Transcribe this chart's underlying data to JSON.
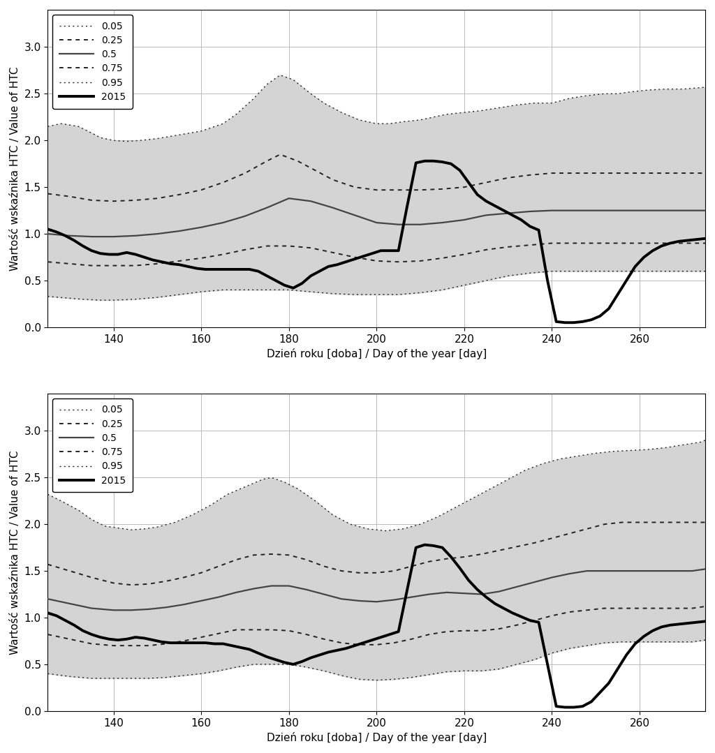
{
  "xlabel": "Dzień roku [doba] / Day of the year [day]",
  "ylabel": "Wartość wskaźnika HTC / Value of HTC",
  "xlim": [
    125,
    275
  ],
  "ylim": [
    0,
    3.4
  ],
  "yticks": [
    0,
    0.5,
    1.0,
    1.5,
    2.0,
    2.5,
    3.0
  ],
  "xticks": [
    140,
    160,
    180,
    200,
    220,
    240,
    260
  ],
  "background_color": "#ffffff",
  "fill_color": "#d4d4d4",
  "line_color_dark": "#222222",
  "line_color_med": "#444444",
  "lw_thin_dot": 1.0,
  "lw_thick_dot": 1.4,
  "lw_median": 1.6,
  "lw_2015": 2.8,
  "figsize": [
    10.24,
    10.79
  ],
  "dpi": 100
}
